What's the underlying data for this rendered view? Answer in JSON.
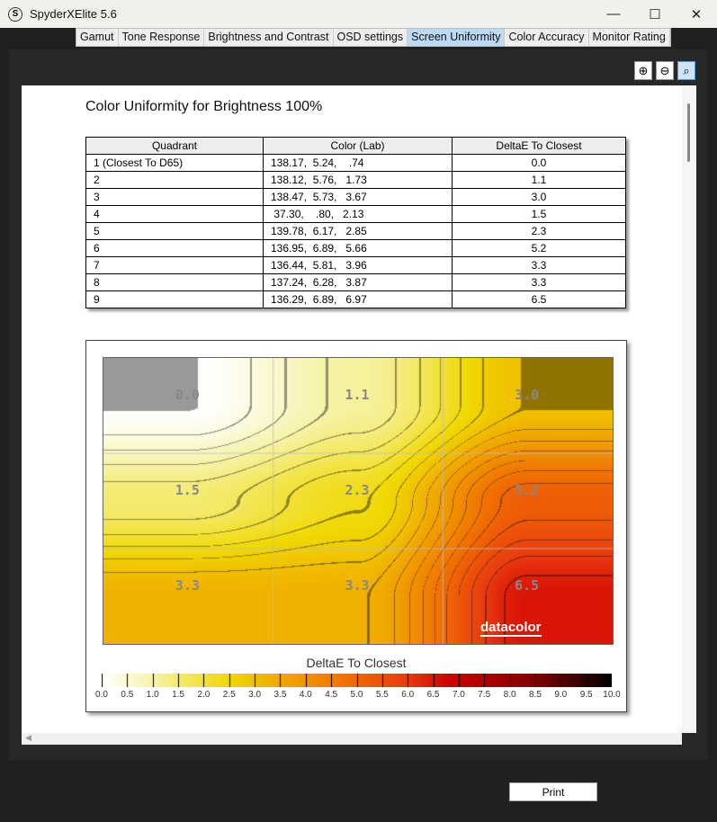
{
  "window": {
    "title": "SpyderXElite 5.6",
    "app_icon": "S"
  },
  "tabs": [
    {
      "label": "Gamut"
    },
    {
      "label": "Tone Response"
    },
    {
      "label": "Brightness and Contrast"
    },
    {
      "label": "OSD settings"
    },
    {
      "label": "Screen Uniformity",
      "active": true
    },
    {
      "label": "Color Accuracy"
    },
    {
      "label": "Monitor Rating"
    }
  ],
  "report": {
    "heading": "Color Uniformity for Brightness 100%",
    "columns": [
      "Quadrant",
      "Color (Lab)",
      "DeltaE To Closest"
    ],
    "rows": [
      [
        "1 (Closest To D65)",
        "138.17,  5.24,    .74",
        "0.0"
      ],
      [
        "2",
        "138.12,  5.76,   1.73",
        "1.1"
      ],
      [
        "3",
        "138.47,  5.73,   3.67",
        "3.0"
      ],
      [
        "4",
        " 37.30,    .80,   2.13",
        "1.5"
      ],
      [
        "5",
        "139.78,  6.17,   2.85",
        "2.3"
      ],
      [
        "6",
        "136.95,  6.89,   5.66",
        "5.2"
      ],
      [
        "7",
        "136.44,  5.81,   3.96",
        "3.3"
      ],
      [
        "8",
        "137.24,  6.28,   3.87",
        "3.3"
      ],
      [
        "9",
        "136.29,  6.89,   6.97",
        "6.5"
      ]
    ]
  },
  "chart_data": {
    "type": "heatmap",
    "grid": [
      [
        0.0,
        1.1,
        3.0
      ],
      [
        1.5,
        2.3,
        5.2
      ],
      [
        3.3,
        3.3,
        6.5
      ]
    ],
    "labels": [
      "0.0",
      "1.1",
      "3.0",
      "1.5",
      "2.3",
      "5.2",
      "3.3",
      "3.3",
      "6.5"
    ],
    "colorbar_title": "DeltaE To Closest",
    "colorbar_range": [
      0,
      10
    ],
    "colorbar_ticks": [
      "0.0",
      "0.5",
      "1.0",
      "1.5",
      "2.0",
      "2.5",
      "3.0",
      "3.5",
      "4.0",
      "4.5",
      "5.0",
      "5.5",
      "6.0",
      "6.5",
      "7.0",
      "7.5",
      "8.0",
      "8.5",
      "9.0",
      "9.5",
      "10.0"
    ],
    "colormap": [
      "#ffffff",
      "#f6f3a8",
      "#f0d800",
      "#f0a800",
      "#f07000",
      "#e83a10",
      "#d00000",
      "#800000",
      "#000000"
    ],
    "logo": "datacolor"
  },
  "buttons": {
    "print": "Print"
  }
}
